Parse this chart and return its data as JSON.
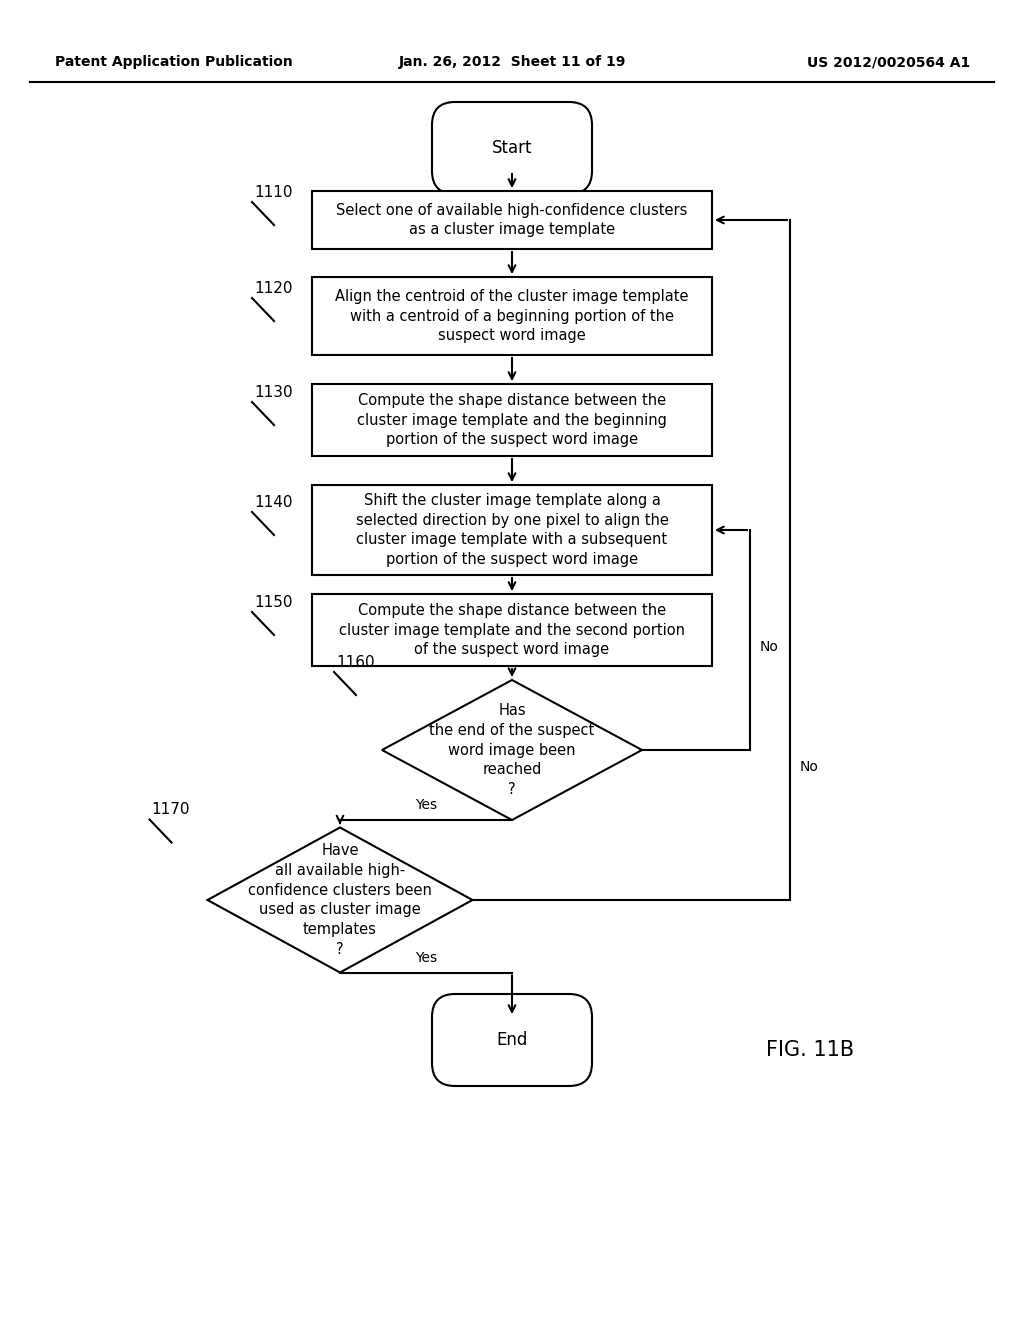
{
  "header_left": "Patent Application Publication",
  "header_mid": "Jan. 26, 2012  Sheet 11 of 19",
  "header_right": "US 2012/0020564 A1",
  "fig_label": "FIG. 11B",
  "background": "#ffffff",
  "line_color": "#000000",
  "text_color": "#000000",
  "box_1110": "Select one of available high-confidence clusters\nas a cluster image template",
  "box_1120": "Align the centroid of the cluster image template\nwith a centroid of a beginning portion of the\nsuspect word image",
  "box_1130": "Compute the shape distance between the\ncluster image template and the beginning\nportion of the suspect word image",
  "box_1140": "Shift the cluster image template along a\nselected direction by one pixel to align the\ncluster image template with a subsequent\nportion of the suspect word image",
  "box_1150": "Compute the shape distance between the\ncluster image template and the second portion\nof the suspect word image",
  "box_1160": "Has\nthe end of the suspect\nword image been\nreached\n?",
  "box_1170": "Have\nall available high-\nconfidence clusters been\nused as cluster image\ntemplates\n?"
}
